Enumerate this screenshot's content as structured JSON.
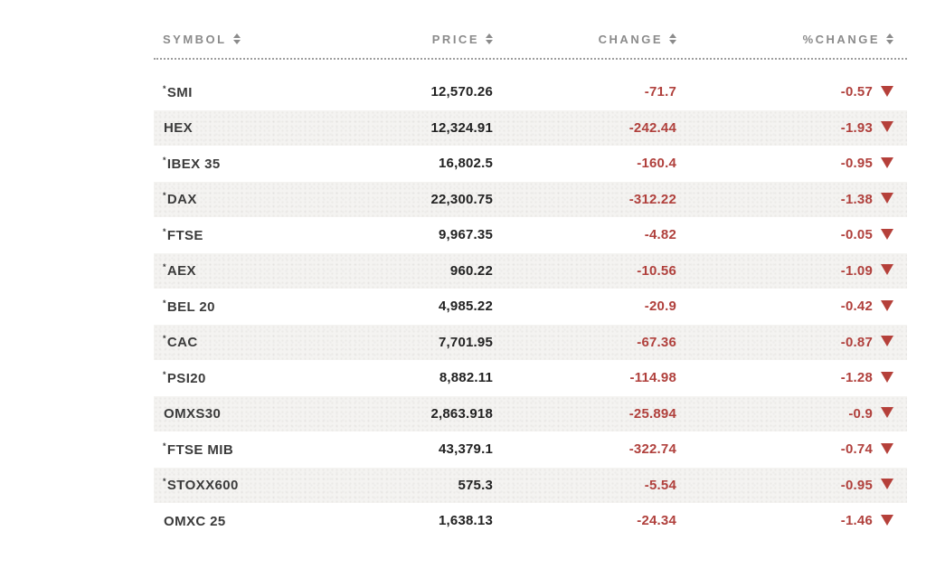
{
  "table": {
    "columns": [
      {
        "label": "SYMBOL"
      },
      {
        "label": "PRICE"
      },
      {
        "label": "CHANGE"
      },
      {
        "label": "%CHANGE"
      }
    ],
    "rows": [
      {
        "prefix": "*",
        "symbol": "SMI",
        "price": "12,570.26",
        "change": "-71.7",
        "pct_change": "-0.57",
        "direction": "down"
      },
      {
        "prefix": "",
        "symbol": "HEX",
        "price": "12,324.91",
        "change": "-242.44",
        "pct_change": "-1.93",
        "direction": "down"
      },
      {
        "prefix": "*",
        "symbol": "IBEX 35",
        "price": "16,802.5",
        "change": "-160.4",
        "pct_change": "-0.95",
        "direction": "down"
      },
      {
        "prefix": "*",
        "symbol": "DAX",
        "price": "22,300.75",
        "change": "-312.22",
        "pct_change": "-1.38",
        "direction": "down"
      },
      {
        "prefix": "*",
        "symbol": "FTSE",
        "price": "9,967.35",
        "change": "-4.82",
        "pct_change": "-0.05",
        "direction": "down"
      },
      {
        "prefix": "*",
        "symbol": "AEX",
        "price": "960.22",
        "change": "-10.56",
        "pct_change": "-1.09",
        "direction": "down"
      },
      {
        "prefix": "*",
        "symbol": "BEL 20",
        "price": "4,985.22",
        "change": "-20.9",
        "pct_change": "-0.42",
        "direction": "down"
      },
      {
        "prefix": "*",
        "symbol": "CAC",
        "price": "7,701.95",
        "change": "-67.36",
        "pct_change": "-0.87",
        "direction": "down"
      },
      {
        "prefix": "*",
        "symbol": "PSI20",
        "price": "8,882.11",
        "change": "-114.98",
        "pct_change": "-1.28",
        "direction": "down"
      },
      {
        "prefix": "",
        "symbol": "OMXS30",
        "price": "2,863.918",
        "change": "-25.894",
        "pct_change": "-0.9",
        "direction": "down"
      },
      {
        "prefix": "*",
        "symbol": "FTSE MIB",
        "price": "43,379.1",
        "change": "-322.74",
        "pct_change": "-0.74",
        "direction": "down"
      },
      {
        "prefix": "*",
        "symbol": "STOXX600",
        "price": "575.3",
        "change": "-5.54",
        "pct_change": "-0.95",
        "direction": "down"
      },
      {
        "prefix": "",
        "symbol": "OMXC 25",
        "price": "1,638.13",
        "change": "-24.34",
        "pct_change": "-1.46",
        "direction": "down"
      }
    ],
    "colors": {
      "negative_text": "#b0403c",
      "down_triangle": "#b5403a",
      "header_text": "#8b8b8b",
      "alt_row_background": "#f4f3f1",
      "symbol_text": "#3b3b3b",
      "price_text": "#222222"
    }
  }
}
